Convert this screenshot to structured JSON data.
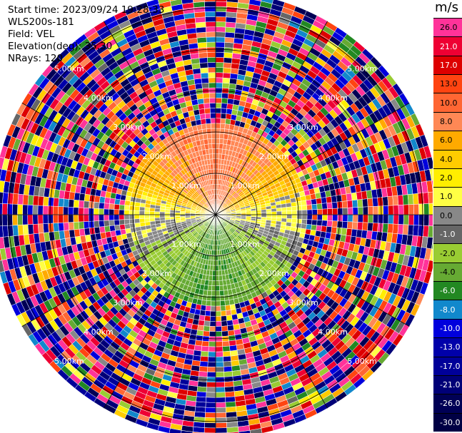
{
  "header": {
    "start_time": "Start time: 2023/09/24 19:28:33",
    "instrument": "WLS200s-181",
    "field": "Field: VEL",
    "elevation": "Elevation(deg): 35.30",
    "nrays": "NRays: 120"
  },
  "colorbar": {
    "unit": "m/s",
    "labels": [
      "26.0",
      "21.0",
      "17.0",
      "13.0",
      "10.0",
      "8.0",
      "6.0",
      "4.0",
      "2.0",
      "1.0",
      "0.0",
      "-1.0",
      "-2.0",
      "-4.0",
      "-6.0",
      "-8.0",
      "-10.0",
      "-13.0",
      "-17.0",
      "-21.0",
      "-26.0",
      "-30.0"
    ],
    "colors": [
      "#ff3399",
      "#ee0033",
      "#dd0000",
      "#ff4411",
      "#ff6633",
      "#ff8855",
      "#ffaa00",
      "#ffcc00",
      "#ffee00",
      "#ffff44",
      "#888888",
      "#666666",
      "#99cc33",
      "#66aa33",
      "#228822",
      "#1188cc",
      "#0000dd",
      "#0000aa",
      "#000099",
      "#000077",
      "#000055",
      "#000044"
    ]
  },
  "chart_data": {
    "type": "ppi",
    "field": "VEL",
    "unit": "m/s",
    "nrays": 120,
    "elevation_deg": 35.3,
    "range_rings_km": [
      1.0,
      2.0,
      3.0,
      4.0,
      5.0
    ],
    "range_ring_labels": [
      "1.00km",
      "2.00km",
      "3.00km",
      "4.00km",
      "5.00km"
    ],
    "max_range_km": 5.4,
    "valid_data_range_km": 2.3,
    "velocity_pattern": "positive (2 to 10 m/s) toward north, negative (-2 to -8 m/s) toward south, near 0 along east-west; random noise beyond ~2.3 km",
    "color_levels": [
      26.0,
      21.0,
      17.0,
      13.0,
      10.0,
      8.0,
      6.0,
      4.0,
      2.0,
      1.0,
      0.0,
      -1.0,
      -2.0,
      -4.0,
      -6.0,
      -8.0,
      -10.0,
      -13.0,
      -17.0,
      -21.0,
      -26.0,
      -30.0
    ]
  }
}
